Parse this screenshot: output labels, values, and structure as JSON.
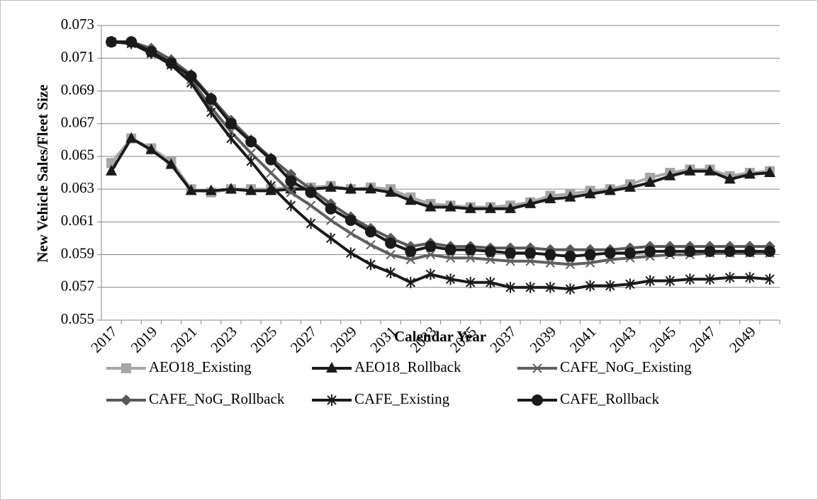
{
  "chart_data": {
    "type": "line",
    "ylabel": "New Vehicle Sales/Fleet Size",
    "xlabel": "Calendar Year",
    "categories": [
      "2017",
      null,
      "2019",
      null,
      "2021",
      null,
      "2023",
      null,
      "2025",
      null,
      "2027",
      null,
      "2029",
      null,
      "2031",
      null,
      "2033",
      null,
      "2035",
      null,
      "2037",
      null,
      "2039",
      null,
      "2041",
      null,
      "2043",
      null,
      "2045",
      null,
      "2047",
      null,
      "2049",
      null
    ],
    "ylim": [
      0.055,
      0.073
    ],
    "yticks": [
      0.055,
      0.057,
      0.059,
      0.061,
      0.063,
      0.065,
      0.067,
      0.069,
      0.071,
      0.073
    ],
    "grid": true,
    "series": [
      {
        "name": "AEO18_Existing",
        "color": "#a6a6a6",
        "marker": "square",
        "values": [
          0.0646,
          0.0661,
          0.0655,
          0.0647,
          0.063,
          0.0628,
          0.063,
          0.063,
          0.063,
          0.0631,
          0.0631,
          0.0632,
          0.063,
          0.0631,
          0.063,
          0.0625,
          0.0621,
          0.062,
          0.0619,
          0.0619,
          0.062,
          0.0622,
          0.0626,
          0.0627,
          0.0629,
          0.063,
          0.0633,
          0.0637,
          0.064,
          0.0642,
          0.0642,
          0.0638,
          0.064,
          0.0641
        ]
      },
      {
        "name": "AEO18_Rollback",
        "color": "#1a1a1a",
        "marker": "triangle",
        "values": [
          0.0641,
          0.0661,
          0.0654,
          0.0645,
          0.0629,
          0.0629,
          0.063,
          0.0629,
          0.0629,
          0.063,
          0.063,
          0.0631,
          0.063,
          0.063,
          0.0628,
          0.0623,
          0.0619,
          0.0619,
          0.0618,
          0.0618,
          0.0618,
          0.0621,
          0.0624,
          0.0625,
          0.0627,
          0.0629,
          0.0631,
          0.0634,
          0.0638,
          0.0641,
          0.0641,
          0.0636,
          0.0639,
          0.064
        ]
      },
      {
        "name": "CAFE_NoG_Existing",
        "color": "#5f5f5f",
        "marker": "x",
        "values": [
          0.072,
          0.0719,
          0.0714,
          0.0706,
          0.0697,
          0.068,
          0.0665,
          0.0652,
          0.064,
          0.0628,
          0.062,
          0.0611,
          0.0603,
          0.0596,
          0.059,
          0.0587,
          0.059,
          0.0588,
          0.0588,
          0.0587,
          0.0586,
          0.0586,
          0.0585,
          0.0584,
          0.0585,
          0.0587,
          0.0588,
          0.0589,
          0.059,
          0.059,
          0.0591,
          0.0591,
          0.0591,
          0.0591
        ]
      },
      {
        "name": "CAFE_NoG_Rollback",
        "color": "#595959",
        "marker": "diamond",
        "values": [
          0.072,
          0.072,
          0.0716,
          0.0709,
          0.07,
          0.0686,
          0.0672,
          0.066,
          0.0649,
          0.0639,
          0.063,
          0.0621,
          0.0613,
          0.0606,
          0.06,
          0.0595,
          0.0597,
          0.0595,
          0.0595,
          0.0594,
          0.0594,
          0.0594,
          0.0593,
          0.0593,
          0.0593,
          0.0593,
          0.0594,
          0.0595,
          0.0595,
          0.0595,
          0.0595,
          0.0595,
          0.0595,
          0.0595
        ]
      },
      {
        "name": "CAFE_Existing",
        "color": "#1a1a1a",
        "marker": "asterisk",
        "values": [
          0.072,
          0.0719,
          0.0713,
          0.0706,
          0.0695,
          0.0677,
          0.0661,
          0.0647,
          0.0632,
          0.062,
          0.0609,
          0.06,
          0.0591,
          0.0584,
          0.0579,
          0.0573,
          0.0578,
          0.0575,
          0.0573,
          0.0573,
          0.057,
          0.057,
          0.057,
          0.0569,
          0.0571,
          0.0571,
          0.0572,
          0.0574,
          0.0574,
          0.0575,
          0.0575,
          0.0576,
          0.0576,
          0.0575
        ]
      },
      {
        "name": "CAFE_Rollback",
        "color": "#1a1a1a",
        "marker": "circle",
        "values": [
          0.072,
          0.072,
          0.0714,
          0.0707,
          0.0699,
          0.0685,
          0.067,
          0.0659,
          0.0648,
          0.0635,
          0.0628,
          0.0618,
          0.0611,
          0.0604,
          0.0597,
          0.0592,
          0.0595,
          0.0593,
          0.0593,
          0.0592,
          0.0591,
          0.0591,
          0.059,
          0.0589,
          0.059,
          0.0591,
          0.0591,
          0.0592,
          0.0592,
          0.0592,
          0.0592,
          0.0592,
          0.0592,
          0.0592
        ]
      }
    ]
  }
}
